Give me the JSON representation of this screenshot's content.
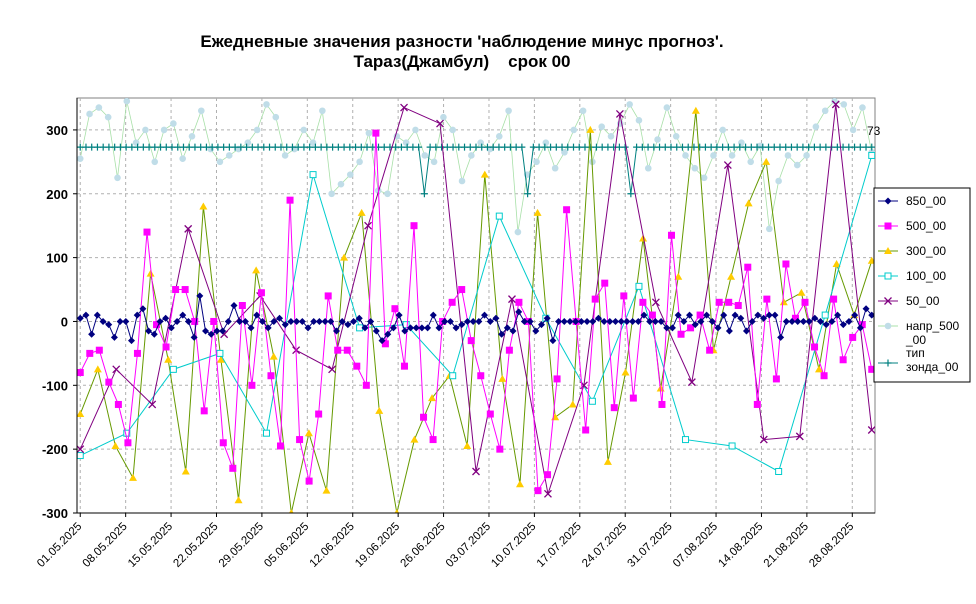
{
  "chart_data": {
    "type": "line",
    "title_line1": "Ежедневные значения разности 'наблюдение минус прогноз'.",
    "title_line2": "Тараз(Джамбул)    срок 00",
    "ylim": [
      -300,
      350
    ],
    "yticks": [
      -300,
      -200,
      -100,
      0,
      100,
      200,
      300
    ],
    "ytick_labels": [
      "-300",
      "-200",
      "-100",
      "0",
      "100",
      "200",
      "300"
    ],
    "x_start": "2025-05-01",
    "x_end": "2025-08-31",
    "xtick_labels": [
      "01.05.2025",
      "08.05.2025",
      "15.05.2025",
      "22.05.2025",
      "29.05.2025",
      "05.06.2025",
      "12.06.2025",
      "19.06.2025",
      "26.06.2025",
      "03.07.2025",
      "10.07.2025",
      "17.07.2025",
      "24.07.2025",
      "31.07.2025",
      "07.08.2025",
      "14.08.2025",
      "21.08.2025",
      "28.08.2025"
    ],
    "grid": true,
    "legend_position": "right",
    "annotation": "73",
    "colors": {
      "850_00": "#000080",
      "500_00": "#ff00ff",
      "300_00": "#ffcc00",
      "300_00_line": "#669900",
      "100_00": "#00cccc",
      "50_00": "#800080",
      "napr_500_00": "#c0dde8",
      "tip_zonda_00": "#008080"
    },
    "series": [
      {
        "name": "850_00",
        "key": "850_00",
        "marker": "diamond",
        "values": [
          5,
          10,
          -20,
          10,
          0,
          -5,
          -25,
          0,
          0,
          -30,
          10,
          20,
          -15,
          -20,
          0,
          5,
          -10,
          0,
          10,
          0,
          -25,
          40,
          -15,
          -20,
          -15,
          -15,
          0,
          25,
          0,
          0,
          -10,
          10,
          0,
          -10,
          0,
          5,
          -5,
          0,
          0,
          0,
          -10,
          0,
          0,
          0,
          0,
          -15,
          0,
          -5,
          0,
          5,
          -10,
          0,
          -15,
          -30,
          -20,
          -10,
          10,
          -15,
          -10,
          -10,
          -10,
          -10,
          10,
          -10,
          0,
          0,
          -10,
          -5,
          0,
          0,
          0,
          10,
          0,
          5,
          -20,
          -10,
          -15,
          15,
          0,
          0,
          -15,
          -5,
          5,
          -30,
          0,
          0,
          0,
          0,
          0,
          0,
          0,
          5,
          0,
          0,
          0,
          0,
          0,
          0,
          0,
          10,
          0,
          0,
          0,
          -10,
          -10,
          10,
          0,
          10,
          -5,
          0,
          10,
          0,
          -10,
          10,
          -15,
          10,
          5,
          -15,
          0,
          10,
          5,
          10,
          10,
          -25,
          0,
          0,
          0,
          0,
          0,
          5,
          0,
          -5,
          0,
          10,
          -5,
          0,
          10,
          -10,
          20,
          10
        ]
      },
      {
        "name": "500_00",
        "key": "500_00",
        "marker": "square",
        "values": [
          -80,
          -50,
          -45,
          -95,
          -130,
          -190,
          -50,
          140,
          -5,
          -40,
          50,
          50,
          0,
          -140,
          0,
          -190,
          -230,
          25,
          -100,
          45,
          -85,
          -195,
          190,
          -185,
          -250,
          -145,
          40,
          -45,
          -45,
          -70,
          -100,
          295,
          -35,
          20,
          -70,
          150,
          -150,
          -185,
          0,
          30,
          50,
          -30,
          -85,
          -145,
          -200,
          -45,
          30,
          0,
          -265,
          -240,
          -90,
          175,
          0,
          -170,
          35,
          60,
          -135,
          40,
          -120,
          30,
          10,
          -130,
          135,
          -20,
          -10,
          10,
          -45,
          30,
          30,
          25,
          85,
          -130,
          35,
          -90,
          90,
          5,
          30,
          -40,
          -85,
          35,
          -60,
          -25,
          -5,
          -75
        ]
      },
      {
        "name": "300_00",
        "key": "300_00",
        "marker": "triangle",
        "values": [
          -145,
          -75,
          -195,
          -245,
          75,
          -60,
          -235,
          180,
          -60,
          -280,
          80,
          -55,
          -300,
          -175,
          -265,
          100,
          170,
          -140,
          -300,
          -185,
          -120,
          -85,
          -195,
          230,
          -90,
          -255,
          170,
          -150,
          -130,
          300,
          -220,
          -80,
          130,
          -105,
          70,
          330,
          -45,
          70,
          185,
          250,
          30,
          45,
          -75,
          90,
          10,
          95
        ]
      },
      {
        "name": "100_00",
        "key": "100_00",
        "marker": "hollow-square",
        "values": [
          -210,
          -175,
          -75,
          -50,
          -175,
          230,
          -10,
          -5,
          -85,
          165,
          5,
          -125,
          55,
          -185,
          -195,
          -235,
          10,
          260
        ]
      },
      {
        "name": "50_00",
        "key": "50_00",
        "marker": "x-cross",
        "values": [
          -200,
          -75,
          -130,
          145,
          -20,
          40,
          -45,
          -75,
          150,
          335,
          310,
          -235,
          35,
          -270,
          -100,
          325,
          30,
          -95,
          245,
          -185,
          -180,
          340,
          -170
        ]
      },
      {
        "name": "напр_500_00",
        "key": "napr_500_00",
        "marker": "dot",
        "values": [
          255,
          325,
          335,
          320,
          225,
          345,
          280,
          300,
          250,
          300,
          310,
          255,
          290,
          330,
          270,
          250,
          260,
          270,
          280,
          300,
          340,
          320,
          260,
          270,
          300,
          280,
          330,
          200,
          215,
          230,
          250,
          295,
          205,
          200,
          290,
          280,
          300,
          260,
          250,
          320,
          300,
          220,
          260,
          280,
          270,
          290,
          330,
          140,
          230,
          250,
          280,
          240,
          265,
          300,
          330,
          250,
          305,
          290,
          310,
          340,
          315,
          240,
          285,
          335,
          290,
          260,
          240,
          225,
          260,
          300,
          260,
          280,
          250,
          275,
          145,
          220,
          260,
          245,
          260,
          305,
          330,
          345,
          340,
          300,
          335,
          265
        ]
      },
      {
        "name": "тип зонда_00",
        "key": "tip_zonda_00",
        "marker": "plus",
        "values": [
          273,
          273,
          273,
          273,
          273,
          273,
          273,
          273,
          273,
          273,
          273,
          273,
          273,
          273,
          273,
          273,
          273,
          273,
          273,
          273,
          273,
          273,
          273,
          273,
          273,
          273,
          273,
          273,
          273,
          273,
          273,
          273,
          273,
          273,
          273,
          273,
          273,
          273,
          273,
          273,
          273,
          273,
          273,
          273,
          273,
          273,
          273,
          273,
          273,
          273,
          273,
          273,
          273,
          273,
          273,
          273,
          273,
          273,
          273,
          273,
          200,
          273,
          273,
          273,
          273,
          273,
          273,
          273,
          273,
          273,
          273,
          273,
          273,
          273,
          273,
          273,
          273,
          273,
          200,
          273,
          273,
          273,
          273,
          273,
          273,
          273,
          273,
          273,
          273,
          273,
          273,
          273,
          273,
          273,
          273,
          273,
          200,
          273,
          273,
          273,
          273,
          273,
          273,
          273,
          273,
          273,
          273,
          273,
          273,
          273,
          273,
          273,
          273,
          273,
          273,
          273,
          273,
          273,
          273,
          273,
          273,
          273,
          273,
          273,
          273,
          273,
          273,
          273,
          273,
          273,
          273,
          273,
          273,
          273,
          273,
          273,
          273,
          273,
          273
        ]
      }
    ]
  }
}
